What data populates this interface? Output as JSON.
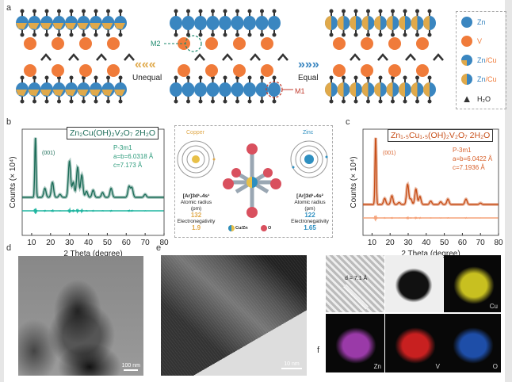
{
  "panel_labels": {
    "a": "a",
    "b": "b",
    "c": "c",
    "d": "d",
    "e": "e",
    "f": "f"
  },
  "panel_a": {
    "m1": "M1",
    "m2": "M2",
    "unequal": "Unequal",
    "equal": "Equal",
    "legend": [
      {
        "label": "Zn",
        "color": "#3a86c0"
      },
      {
        "label": "V",
        "color": "#f07b3a"
      },
      {
        "label_a": "Zn",
        "label_b": "/Cu",
        "color": "#3a86c0",
        "accent": "#e0a94a"
      },
      {
        "label_a": "Zn",
        "label_b": "/Cu",
        "color": "#3a86c0",
        "accent": "#e0a94a"
      },
      {
        "label": "H₂O",
        "color": "#333"
      }
    ],
    "colors": {
      "zn": "#3a86c0",
      "v": "#f07b3a",
      "cu": "#e0a94a",
      "h2o": "#333",
      "m1": "#c0392b",
      "m2": "#1e8a6e"
    }
  },
  "panel_b": {
    "formula": "Zn₂Cu(OH)₂V₂O₇ 2H₂O",
    "hkl": "(001)",
    "space_group": "P-3m1",
    "lattice_a": "a=b=6.0318 Å",
    "lattice_c": "c=7.173 Å"
  },
  "panel_c": {
    "formula": "Zn₁.₅Cu₁.₅(OH)₂V₂O₇ 2H₂O",
    "hkl": "(001)",
    "space_group": "P-3m1",
    "lattice_a": "a=b=6.0422 Å",
    "lattice_c": "c=7.1936 Å"
  },
  "center": {
    "copper": {
      "name": "Copper",
      "config": "[Ar]3d¹₀4s¹",
      "radius_label": "Atomic radius",
      "radius_unit": "(pm)",
      "radius": "132",
      "en_label": "Electronegativity",
      "en": "1.9",
      "color": "#e0a94a"
    },
    "zinc": {
      "name": "Zinc",
      "config": "[Ar]3d¹₀4s²",
      "radius_label": "Atomic radius",
      "radius_unit": "(pm)",
      "radius": "122",
      "en_label": "Electronegativity",
      "en": "1.65",
      "color": "#2e8fc0"
    },
    "legend_cuzn": "Cu/Zn",
    "legend_o": "O"
  },
  "chart_data": [
    {
      "type": "line",
      "panel": "b",
      "xlabel": "2 Theta (degree)",
      "ylabel": "Counts (× 10⁴)",
      "xlim": [
        5,
        80
      ],
      "xticks": [
        10,
        20,
        30,
        40,
        50,
        60,
        70,
        80
      ],
      "peaks": [
        [
          12,
          1.0
        ],
        [
          17,
          0.15
        ],
        [
          21,
          0.25
        ],
        [
          25,
          0.05
        ],
        [
          30,
          0.6
        ],
        [
          32,
          0.25
        ],
        [
          34.3,
          0.5
        ],
        [
          36.5,
          0.37
        ],
        [
          39,
          0.1
        ],
        [
          42.5,
          0.12
        ],
        [
          47.5,
          0.08
        ],
        [
          52,
          0.15
        ],
        [
          61.5,
          0.18
        ],
        [
          63,
          0.16
        ],
        [
          70,
          0.05
        ]
      ],
      "series": [
        {
          "color": "#1e6e5a"
        },
        {
          "color": "#1fb5a0"
        }
      ]
    },
    {
      "type": "line",
      "panel": "c",
      "xlabel": "2 Theta (degree)",
      "ylabel": "Counts (× 10⁴)",
      "xlim": [
        5,
        80
      ],
      "xticks": [
        10,
        20,
        30,
        40,
        50,
        60,
        70,
        80
      ],
      "peaks": [
        [
          12,
          1.0
        ],
        [
          17,
          0.09
        ],
        [
          21,
          0.13
        ],
        [
          25,
          0.03
        ],
        [
          29.7,
          0.3
        ],
        [
          31.5,
          0.08
        ],
        [
          34.3,
          0.23
        ],
        [
          36.5,
          0.12
        ],
        [
          42.5,
          0.05
        ],
        [
          48,
          0.04
        ],
        [
          52,
          0.08
        ],
        [
          62,
          0.08
        ],
        [
          70,
          0.02
        ]
      ],
      "series": [
        {
          "color": "#c8501a"
        },
        {
          "color": "#f5a37a"
        }
      ]
    }
  ],
  "panel_d": {
    "scale": "100 nm"
  },
  "panel_e": {
    "scale": "10 nm"
  },
  "panel_f": {
    "d_spacing": "d = 7.1 Å",
    "cu": "Cu",
    "zn": "Zn",
    "v": "V",
    "o": "O"
  }
}
